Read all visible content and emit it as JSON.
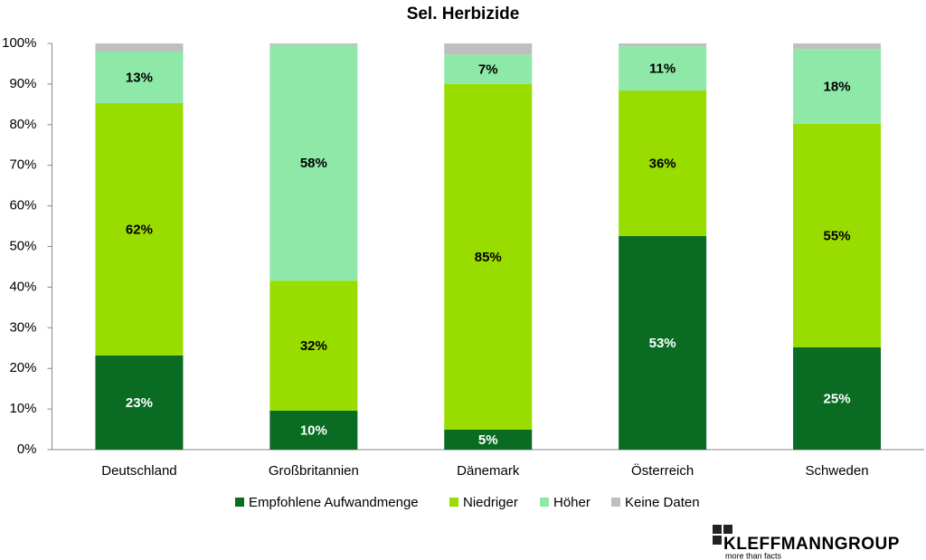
{
  "chart_data": {
    "type": "stacked-bar",
    "title": "Sel. Herbizide",
    "categories": [
      "Deutschland",
      "Großbritannien",
      "Dänemark",
      "Österreich",
      "Schweden"
    ],
    "series": [
      {
        "name": "Empfohlene Aufwandmenge",
        "color": "#0a6b23",
        "values": [
          23.2,
          9.6,
          4.9,
          52.6,
          25.2
        ],
        "value_labels": [
          "23%",
          "10%",
          "5%",
          "53%",
          "25%"
        ]
      },
      {
        "name": "Niedriger",
        "color": "#99dd00",
        "values": [
          62.1,
          32.0,
          85.1,
          35.8,
          55.0
        ],
        "value_labels": [
          "62%",
          "32%",
          "85%",
          "36%",
          "55%"
        ]
      },
      {
        "name": "Höher",
        "color": "#8ee8a8",
        "values": [
          12.7,
          58.0,
          7.3,
          10.9,
          18.4
        ],
        "value_labels": [
          "13%",
          "58%",
          "7%",
          "11%",
          "18%"
        ]
      },
      {
        "name": "Keine Daten",
        "color": "#bfbfbf",
        "values": [
          2.0,
          0.4,
          2.7,
          0.7,
          1.4
        ]
      }
    ],
    "ylim": [
      0,
      100
    ],
    "yticks": [
      {
        "value": 0,
        "label": "0%"
      },
      {
        "value": 10,
        "label": "10%"
      },
      {
        "value": 20,
        "label": "20%"
      },
      {
        "value": 30,
        "label": "30%"
      },
      {
        "value": 40,
        "label": "40%"
      },
      {
        "value": 50,
        "label": "50%"
      },
      {
        "value": 60,
        "label": "60%"
      },
      {
        "value": 70,
        "label": "70%"
      },
      {
        "value": 80,
        "label": "80%"
      },
      {
        "value": 90,
        "label": "90%"
      },
      {
        "value": 100,
        "label": "100%"
      }
    ],
    "grid": false
  },
  "logo": {
    "name": "KLEFFMANNGROUP",
    "tagline": "more than facts"
  }
}
